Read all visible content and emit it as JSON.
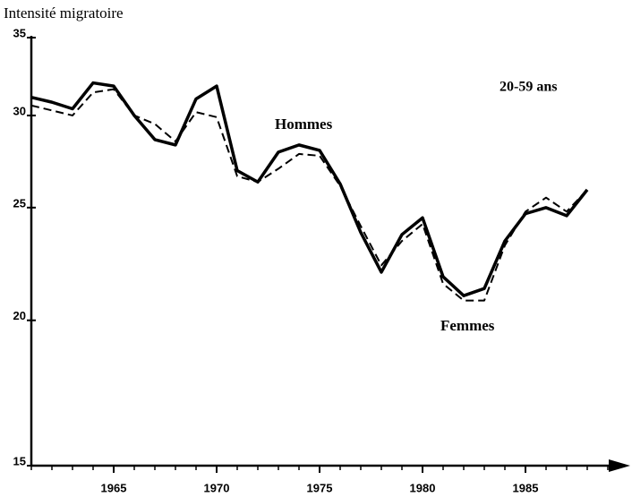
{
  "chart_data": {
    "type": "line",
    "y_label": "Intensité migratoire",
    "annotations": [
      "20-59 ans",
      "Hommes",
      "Femmes"
    ],
    "x": [
      1961,
      1962,
      1963,
      1964,
      1965,
      1966,
      1967,
      1968,
      1969,
      1970,
      1971,
      1972,
      1973,
      1974,
      1975,
      1976,
      1977,
      1978,
      1979,
      1980,
      1981,
      1982,
      1983,
      1984,
      1985,
      1986,
      1987,
      1988
    ],
    "series": [
      {
        "name": "Hommes",
        "color": "#000000",
        "dash": false,
        "values": [
          31.1,
          30.8,
          30.4,
          32.0,
          31.8,
          30.0,
          28.6,
          28.3,
          31.0,
          31.8,
          26.9,
          26.3,
          27.9,
          28.3,
          28.0,
          26.2,
          23.8,
          22.0,
          23.7,
          24.5,
          21.8,
          21.0,
          21.3,
          23.4,
          24.7,
          25.0,
          24.6,
          25.9
        ]
      },
      {
        "name": "Femmes",
        "color": "#000000",
        "dash": true,
        "values": [
          30.6,
          30.3,
          30.0,
          31.4,
          31.6,
          30.0,
          29.5,
          28.5,
          30.2,
          29.9,
          26.6,
          26.3,
          27.0,
          27.8,
          27.7,
          26.1,
          24.1,
          22.3,
          23.4,
          24.2,
          21.5,
          20.8,
          20.8,
          23.2,
          24.8,
          25.5,
          24.8,
          25.9
        ]
      }
    ],
    "xlim": [
      1961,
      1990
    ],
    "xticks": [
      1965,
      1970,
      1975,
      1980,
      1985
    ],
    "ylim": [
      15,
      35
    ],
    "yticks": [
      15,
      20,
      25,
      30,
      35
    ],
    "log_y": true,
    "grid": false
  }
}
